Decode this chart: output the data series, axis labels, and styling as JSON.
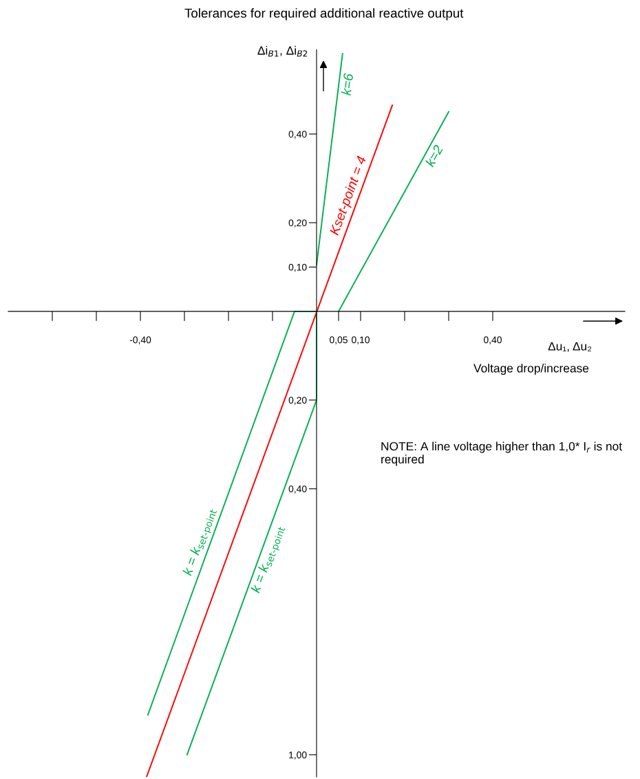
{
  "chart_data": {
    "type": "line",
    "title": "Tolerances for required additional reactive output",
    "xlabel": "Δu₁, Δu₂",
    "ylabel": "Δi$_{B1}$, Δi$_{B2}$",
    "annotations": [
      "Voltage drop/increase",
      "NOTE: A line voltage higher than 1,0* I$_{r}$ is not required"
    ],
    "xlim": [
      -0.7,
      0.7
    ],
    "ylim": [
      -1.05,
      0.59
    ],
    "xticks": [
      {
        "value": -0.6,
        "label": null
      },
      {
        "value": -0.5,
        "label": null
      },
      {
        "value": -0.4,
        "label": "-0,40"
      },
      {
        "value": -0.3,
        "label": null
      },
      {
        "value": -0.2,
        "label": null
      },
      {
        "value": -0.1,
        "label": null
      },
      {
        "value": 0.05,
        "label": "0,05"
      },
      {
        "value": 0.1,
        "label": "0,10"
      },
      {
        "value": 0.2,
        "label": null
      },
      {
        "value": 0.3,
        "label": null
      },
      {
        "value": 0.4,
        "label": "0,40"
      }
    ],
    "yticks": [
      {
        "value": 0.4,
        "label": "0,40"
      },
      {
        "value": 0.2,
        "label": "0,20"
      },
      {
        "value": 0.1,
        "label": "0,10"
      },
      {
        "value": -0.2,
        "label": "0,20"
      },
      {
        "value": -0.4,
        "label": "0,40"
      },
      {
        "value": -1.0,
        "label": "1,00"
      }
    ],
    "grid": false,
    "legend": false,
    "line_style": "solid",
    "marker": "none",
    "series": [
      {
        "name": "k=6",
        "color": "#00b050",
        "x": [
          0,
          0.059
        ],
        "values": [
          0.105,
          0.581
        ]
      },
      {
        "name": "Kset-point = 4",
        "color": "#ff0000",
        "x": [
          -0.386,
          0.172
        ],
        "values": [
          -1.05,
          0.465
        ]
      },
      {
        "name": "k=2",
        "color": "#00b050",
        "x": [
          0.05,
          0.3
        ],
        "values": [
          0,
          0.45
        ]
      },
      {
        "name": "k = k$_{set-point}$",
        "color": "#00b050",
        "x": [
          -0.383,
          -0.05,
          0
        ],
        "values": [
          -0.91,
          0,
          0
        ]
      },
      {
        "name": "k = k$_{set-point}$",
        "color": "#00b050",
        "x": [
          0,
          0,
          -0.294
        ],
        "values": [
          0,
          -0.2,
          -1.0
        ]
      }
    ]
  }
}
